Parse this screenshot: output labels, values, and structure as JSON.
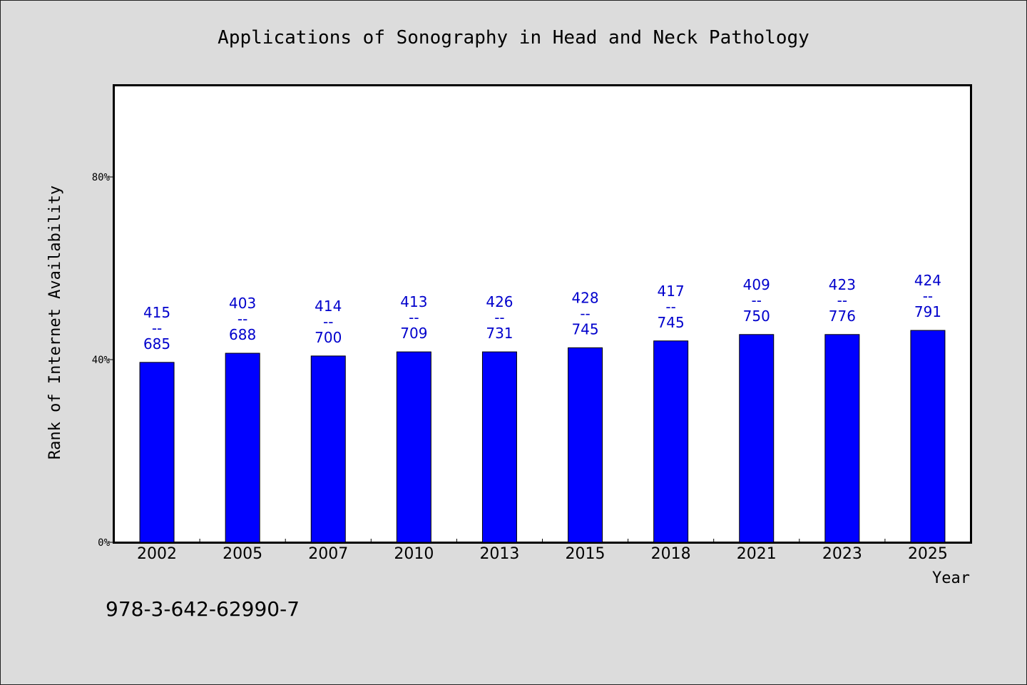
{
  "chart_data": {
    "type": "bar",
    "title": "Applications of Sonography in Head and Neck Pathology",
    "xlabel": "Year",
    "ylabel": "Rank of Internet Availability",
    "categories": [
      "2002",
      "2005",
      "2007",
      "2010",
      "2013",
      "2015",
      "2018",
      "2021",
      "2023",
      "2025"
    ],
    "series": [
      {
        "values": [
          39.4,
          41.4,
          40.8,
          41.7,
          41.7,
          42.6,
          44.1,
          45.5,
          45.5,
          46.4
        ]
      }
    ],
    "data_labels": [
      [
        "415",
        "--",
        "685"
      ],
      [
        "403",
        "--",
        "688"
      ],
      [
        "414",
        "--",
        "700"
      ],
      [
        "413",
        "--",
        "709"
      ],
      [
        "426",
        "--",
        "731"
      ],
      [
        "428",
        "--",
        "745"
      ],
      [
        "417",
        "--",
        "745"
      ],
      [
        "409",
        "--",
        "750"
      ],
      [
        "423",
        "--",
        "776"
      ],
      [
        "424",
        "--",
        "791"
      ]
    ],
    "yticks": [
      0,
      40,
      80
    ],
    "ytick_labels": [
      "0%",
      "40%",
      "80%"
    ],
    "ylim": [
      0,
      100
    ],
    "grid": false,
    "legend": "none",
    "bar_color": "#0000ff",
    "label_color": "#0000cc"
  },
  "footer": {
    "isbn": "978-3-642-62990-7"
  }
}
